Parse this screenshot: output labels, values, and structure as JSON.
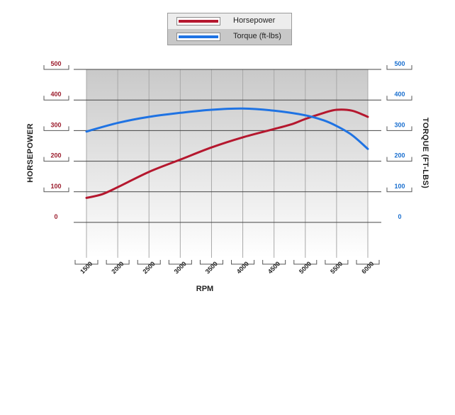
{
  "chart_data": {
    "type": "line",
    "x": [
      1500,
      2000,
      2500,
      3000,
      3500,
      4000,
      4500,
      5000,
      5500,
      6000
    ],
    "xlabel": "RPM",
    "xlim": [
      1500,
      6000
    ],
    "x_ticks": [
      "1500",
      "2000",
      "2500",
      "3000",
      "3500",
      "4000",
      "4500",
      "5000",
      "5500",
      "6000"
    ],
    "y_left": {
      "label": "HORSEPOWER",
      "range": [
        0,
        500
      ],
      "ticks": [
        "0",
        "100",
        "200",
        "300",
        "400",
        "500"
      ],
      "color": "#9b1c2c"
    },
    "y_right": {
      "label": "TORQUE (FT-LBS)",
      "range": [
        0,
        500
      ],
      "ticks": [
        "0",
        "100",
        "200",
        "300",
        "400",
        "500"
      ],
      "color": "#1a6fcf"
    },
    "series": [
      {
        "name": "Horsepower",
        "axis": "left",
        "color": "#b5172e",
        "points": [
          [
            1500,
            80
          ],
          [
            1750,
            92
          ],
          [
            2000,
            115
          ],
          [
            2500,
            165
          ],
          [
            3000,
            205
          ],
          [
            3500,
            245
          ],
          [
            4000,
            278
          ],
          [
            4500,
            305
          ],
          [
            4800,
            322
          ],
          [
            5000,
            338
          ],
          [
            5300,
            358
          ],
          [
            5500,
            368
          ],
          [
            5750,
            365
          ],
          [
            6000,
            345
          ]
        ]
      },
      {
        "name": "Torque (ft-lbs)",
        "axis": "right",
        "color": "#1f73e3",
        "points": [
          [
            1500,
            297
          ],
          [
            2000,
            325
          ],
          [
            2500,
            345
          ],
          [
            3000,
            358
          ],
          [
            3500,
            368
          ],
          [
            4000,
            372
          ],
          [
            4500,
            365
          ],
          [
            5000,
            350
          ],
          [
            5300,
            333
          ],
          [
            5500,
            315
          ],
          [
            5750,
            285
          ],
          [
            6000,
            240
          ]
        ]
      }
    ],
    "legend_position": "top-center",
    "grid": true
  }
}
